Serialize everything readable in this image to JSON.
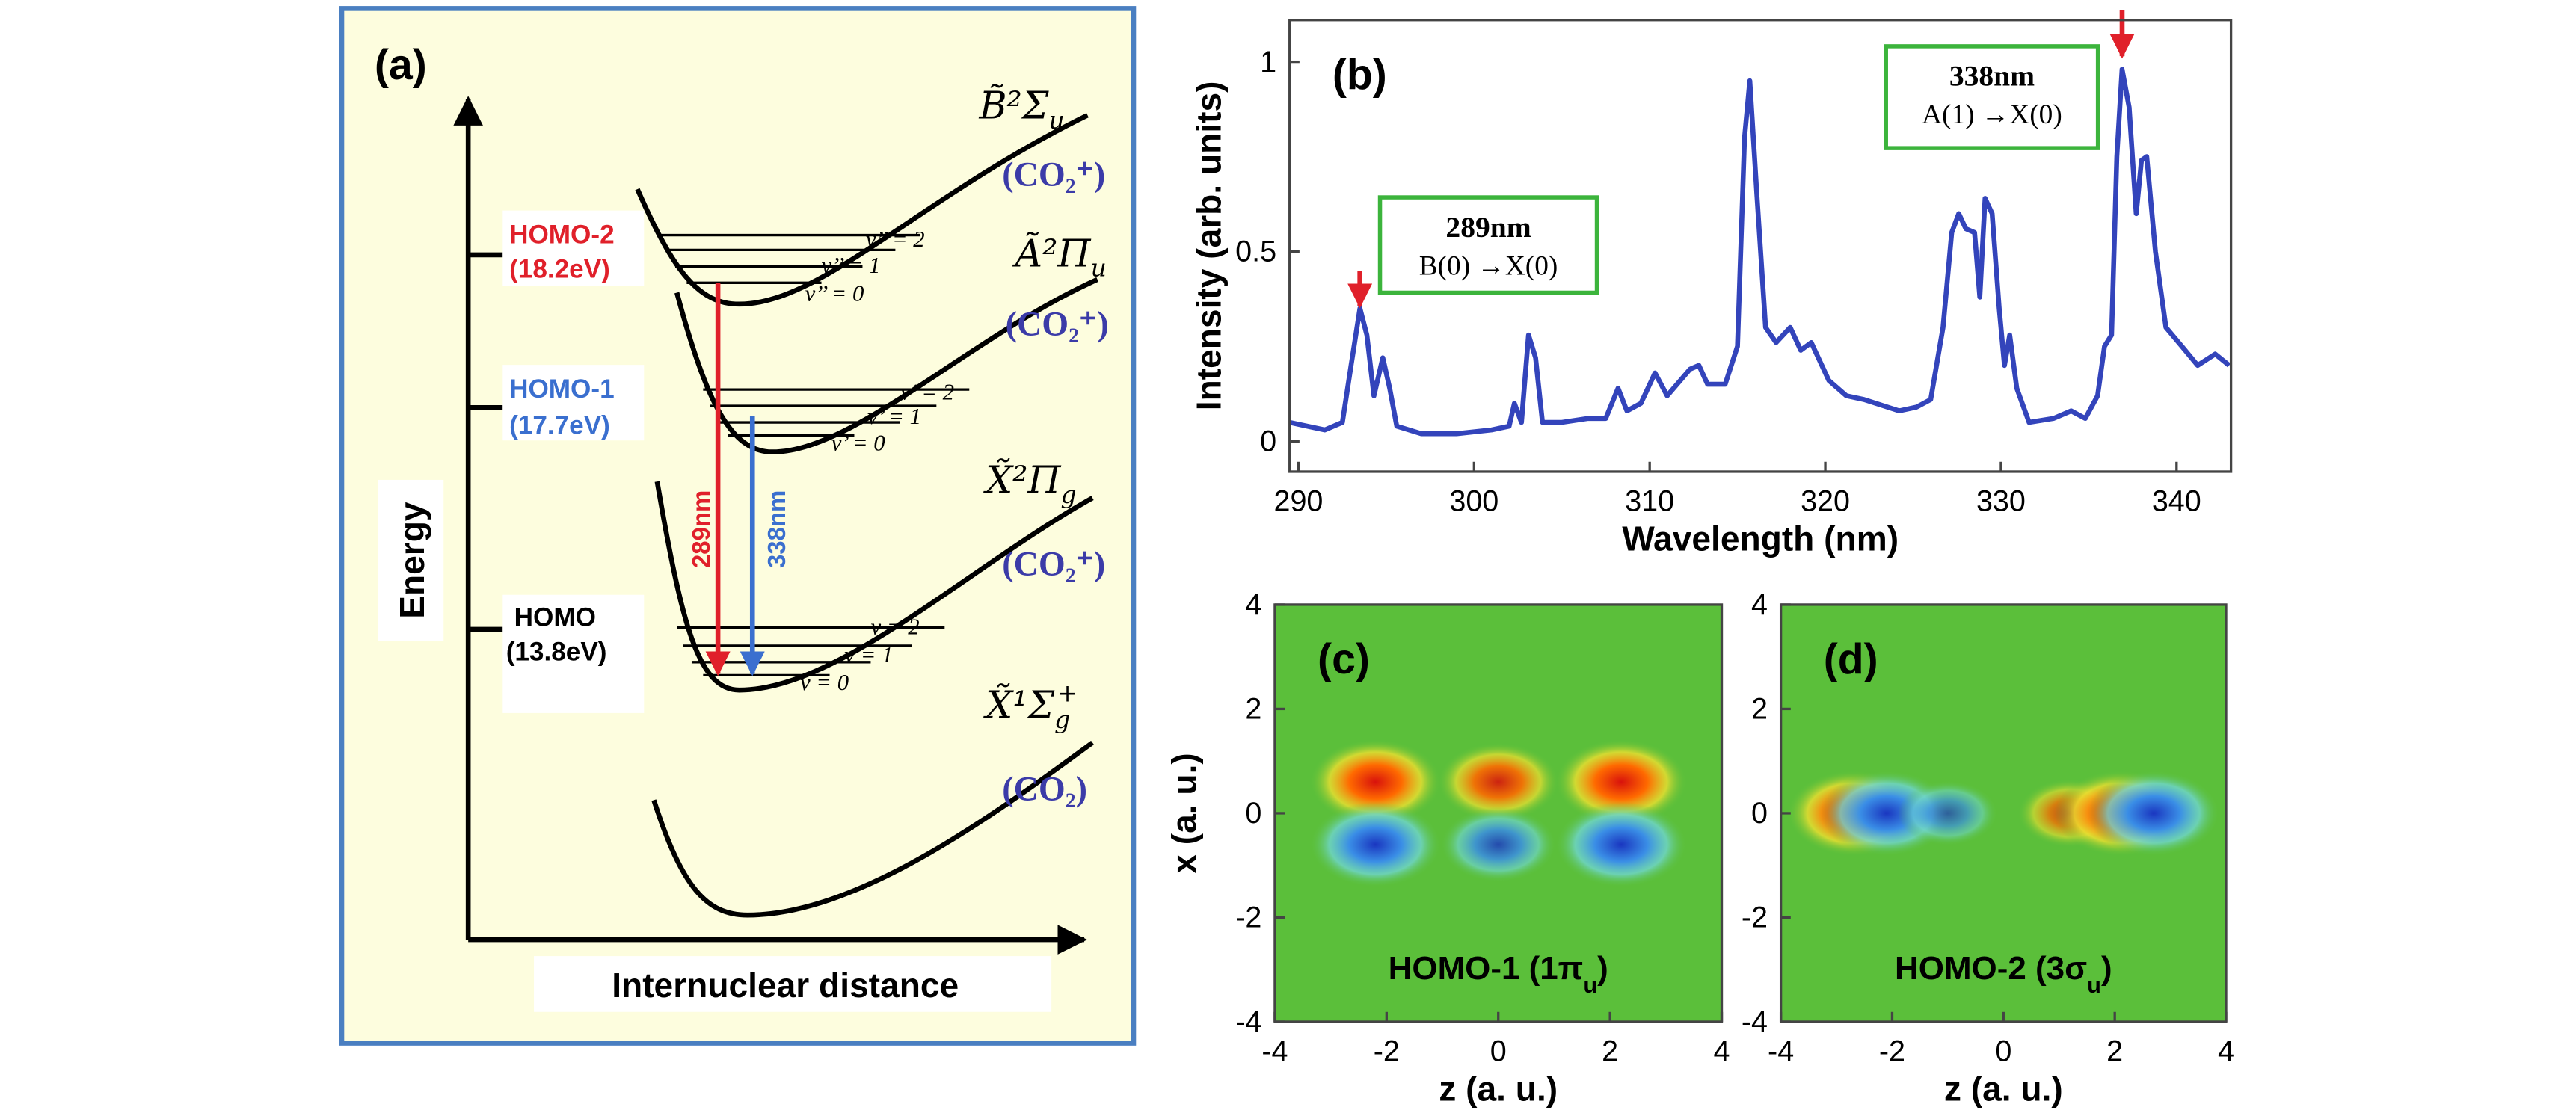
{
  "panel_a": {
    "label": "(a)",
    "y_axis": "Energy",
    "x_axis": "Internuclear distance",
    "states": [
      {
        "symbol": "B̃²Σ",
        "sub": "u",
        "species": "(CO₂⁺)"
      },
      {
        "symbol": "Ã²Π",
        "sub": "u",
        "species": "(CO₂⁺)"
      },
      {
        "symbol": "X̃²Π",
        "sub": "g",
        "species": "(CO₂⁺)"
      },
      {
        "symbol": "X̃¹Σ",
        "sub": "g",
        "sup": "+",
        "species": "(CO₂)"
      }
    ],
    "levels": [
      {
        "name": "HOMO-2",
        "energy": "(18.2eV)"
      },
      {
        "name": "HOMO-1",
        "energy": "(17.7eV)"
      },
      {
        "name": "HOMO",
        "energy": "(13.8eV)"
      }
    ],
    "vibrational": [
      [
        "v’’ = 2",
        "v’’ = 1",
        "v’’ = 0"
      ],
      [
        "v’ = 2",
        "v’ = 1",
        "v’ = 0"
      ],
      [
        "v = 2",
        "v = 1",
        "v = 0"
      ]
    ],
    "transitions": [
      "289nm",
      "338nm"
    ]
  },
  "chart_data": [
    {
      "type": "line",
      "panel_label": "(b)",
      "xlabel": "Wavelength (nm)",
      "ylabel": "Intensity (arb. units)",
      "color": "#3344bb",
      "x": [
        289.5,
        290.5,
        291.5,
        292.5,
        293,
        293.5,
        293.9,
        294.3,
        294.8,
        295.2,
        295.6,
        297,
        299,
        301,
        302,
        302.3,
        302.7,
        303.1,
        303.5,
        303.9,
        305,
        306.5,
        307.5,
        308.2,
        308.7,
        309.5,
        310.3,
        311,
        312.3,
        312.8,
        313.3,
        314.3,
        315,
        315.4,
        315.7,
        316.1,
        316.6,
        317.2,
        318,
        318.6,
        319.2,
        320.2,
        321.2,
        322.2,
        324.2,
        325.2,
        326,
        326.7,
        327.2,
        327.6,
        328,
        328.5,
        328.8,
        329.1,
        329.5,
        329.9,
        330.2,
        330.5,
        330.9,
        331.6,
        333,
        334,
        334.8,
        335.5,
        335.9,
        336.3,
        336.6,
        336.9,
        337.3,
        337.7,
        338,
        338.3,
        338.8,
        339.4,
        340.3,
        341.2,
        342.2,
        343
      ],
      "values": [
        0.05,
        0.04,
        0.03,
        0.05,
        0.2,
        0.35,
        0.28,
        0.12,
        0.22,
        0.14,
        0.04,
        0.02,
        0.02,
        0.03,
        0.04,
        0.1,
        0.05,
        0.28,
        0.22,
        0.05,
        0.05,
        0.06,
        0.06,
        0.14,
        0.08,
        0.1,
        0.18,
        0.12,
        0.19,
        0.2,
        0.15,
        0.15,
        0.25,
        0.8,
        0.95,
        0.65,
        0.3,
        0.26,
        0.3,
        0.24,
        0.26,
        0.16,
        0.12,
        0.11,
        0.08,
        0.09,
        0.11,
        0.3,
        0.55,
        0.6,
        0.56,
        0.55,
        0.38,
        0.64,
        0.6,
        0.35,
        0.2,
        0.28,
        0.14,
        0.05,
        0.06,
        0.08,
        0.06,
        0.12,
        0.25,
        0.28,
        0.75,
        0.98,
        0.88,
        0.6,
        0.74,
        0.75,
        0.5,
        0.3,
        0.25,
        0.2,
        0.23,
        0.2
      ],
      "xlim": [
        289.5,
        343.1
      ],
      "xticks": [
        290,
        300,
        310,
        320,
        330,
        340
      ],
      "ylim": [
        -0.08,
        1.11
      ],
      "yticks": [
        0,
        0.5,
        1
      ],
      "annotations": [
        {
          "label": "289nm",
          "transition": "B(0) →X(0)",
          "x": 293.5
        },
        {
          "label": "338nm",
          "transition": "A(1) →X(0)",
          "x": 336.9
        }
      ]
    },
    {
      "type": "heatmap",
      "panel_label": "(c)",
      "xlabel": "z (a. u.)",
      "ylabel": "x (a. u.)",
      "annotation": [
        "HOMO-1 (1π",
        "u",
        ")"
      ],
      "x": [
        -2.2,
        0,
        2.2,
        -2.2,
        0,
        2.2
      ],
      "y": [
        0.6,
        0.6,
        0.6,
        -0.6,
        -0.6,
        -0.6
      ],
      "values": [
        1,
        0.8,
        1,
        -1,
        -0.7,
        -1
      ],
      "xlim": [
        -4,
        4
      ],
      "xticks": [
        -4,
        -2,
        0,
        2,
        4
      ],
      "ylim": [
        -4,
        4
      ],
      "yticks": [
        -4,
        -2,
        0,
        2,
        4
      ]
    },
    {
      "type": "heatmap",
      "panel_label": "(d)",
      "xlabel": "z (a. u.)",
      "annotation": [
        "HOMO-2 (3σ",
        "u",
        ")"
      ],
      "x": [
        -2.7,
        -2.1,
        -1,
        1.2,
        2.1,
        2.7
      ],
      "y": [
        0,
        0,
        0,
        0,
        0,
        0
      ],
      "values": [
        1,
        -1,
        -0.4,
        0.5,
        1,
        -1
      ],
      "xlim": [
        -4,
        4
      ],
      "xticks": [
        -4,
        -2,
        0,
        2,
        4
      ],
      "ylim": [
        -4,
        4
      ],
      "yticks": [
        -4,
        -2,
        0,
        2,
        4
      ]
    }
  ]
}
